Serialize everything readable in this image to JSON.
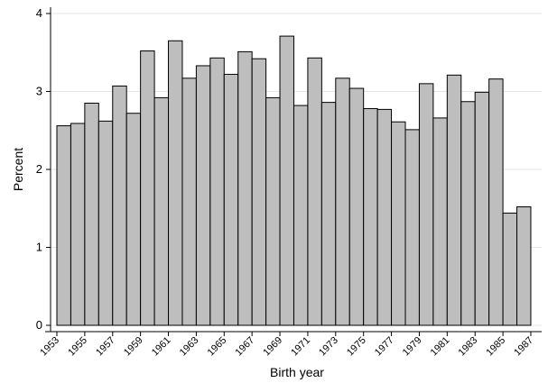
{
  "chart_data": {
    "type": "bar",
    "xlabel": "Birth year",
    "ylabel": "Percent",
    "ylim": [
      0,
      4
    ],
    "grid": true,
    "y_ticks": [
      "0",
      "1",
      "2",
      "3",
      "4"
    ],
    "x_tick_labels": [
      "1953",
      "1955",
      "1957",
      "1959",
      "1961",
      "1963",
      "1965",
      "1967",
      "1969",
      "1971",
      "1973",
      "1975",
      "1977",
      "1979",
      "1981",
      "1983",
      "1985",
      "1987"
    ],
    "categories": [
      1953,
      1954,
      1955,
      1956,
      1957,
      1958,
      1959,
      1960,
      1961,
      1962,
      1963,
      1964,
      1965,
      1966,
      1967,
      1968,
      1969,
      1970,
      1971,
      1972,
      1973,
      1974,
      1975,
      1976,
      1977,
      1978,
      1979,
      1980,
      1981,
      1982,
      1983,
      1984,
      1985,
      1986
    ],
    "values": [
      2.56,
      2.59,
      2.85,
      2.62,
      3.07,
      2.72,
      3.52,
      2.92,
      3.65,
      3.17,
      3.33,
      3.43,
      3.22,
      3.51,
      3.42,
      2.92,
      3.71,
      2.82,
      3.43,
      2.86,
      3.17,
      3.04,
      2.78,
      2.77,
      2.61,
      2.51,
      3.1,
      2.66,
      3.21,
      2.87,
      2.99,
      3.16,
      1.44,
      1.52
    ]
  }
}
